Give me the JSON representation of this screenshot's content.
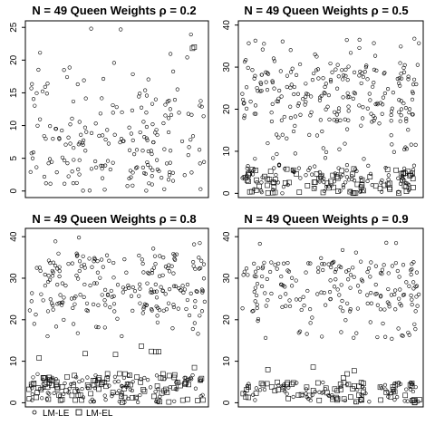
{
  "chart_data": [
    {
      "type": "scatter",
      "title": "N = 49  Queen  Weights  ρ = 0.2",
      "xlabel": "",
      "ylabel": "",
      "ylim": [
        -1,
        26
      ],
      "yticks": [
        "0",
        "5",
        "10",
        "15",
        "20",
        "25"
      ],
      "ytick_values": [
        0,
        5,
        10,
        15,
        20,
        25
      ],
      "series": [
        {
          "marker": "circle",
          "bands": [
            {
              "x_range": [
                0,
                1000
              ],
              "y_range": [
                0,
                9
              ],
              "density": "solid"
            },
            {
              "x_range": [
                0,
                1000
              ],
              "y_range": [
                9,
                15
              ],
              "density": "dense"
            },
            {
              "x_range": [
                0,
                1000
              ],
              "y_range": [
                15,
                20
              ],
              "density": "medium"
            },
            {
              "x_range": [
                0,
                1000
              ],
              "y_range": [
                20,
                25
              ],
              "density": "sparse"
            }
          ]
        },
        {
          "marker": "square",
          "points": [
            [
              930,
              21.8
            ],
            [
              940,
              22.0
            ]
          ]
        }
      ]
    },
    {
      "type": "scatter",
      "title": "N = 49  Queen  Weights  ρ = 0.5",
      "xlabel": "",
      "ylabel": "",
      "ylim": [
        -1,
        41
      ],
      "yticks": [
        "0",
        "10",
        "20",
        "30",
        "40"
      ],
      "ytick_values": [
        0,
        10,
        20,
        30,
        40
      ],
      "series": [
        {
          "marker": "circle",
          "bands": [
            {
              "x_range": [
                0,
                1000
              ],
              "y_range": [
                17,
                31
              ],
              "density": "solid"
            },
            {
              "x_range": [
                0,
                1000
              ],
              "y_range": [
                8,
                17
              ],
              "density": "medium"
            },
            {
              "x_range": [
                0,
                1000
              ],
              "y_range": [
                31,
                37
              ],
              "density": "medium"
            },
            {
              "x_range": [
                0,
                1000
              ],
              "y_range": [
                0,
                7
              ],
              "density": "solid"
            }
          ]
        },
        {
          "marker": "square",
          "bands": [
            {
              "x_range": [
                0,
                1000
              ],
              "y_range": [
                0,
                6
              ],
              "density": "solid"
            }
          ]
        }
      ]
    },
    {
      "type": "scatter",
      "title": "N = 49  Queen  Weights  ρ = 0.8",
      "xlabel": "",
      "ylabel": "",
      "ylim": [
        -1,
        42
      ],
      "yticks": [
        "0",
        "10",
        "20",
        "30",
        "40"
      ],
      "ytick_values": [
        0,
        10,
        20,
        30,
        40
      ],
      "series": [
        {
          "marker": "circle",
          "bands": [
            {
              "x_range": [
                0,
                1000
              ],
              "y_range": [
                22,
                36
              ],
              "density": "solid"
            },
            {
              "x_range": [
                0,
                1000
              ],
              "y_range": [
                16,
                22
              ],
              "density": "medium"
            },
            {
              "x_range": [
                0,
                1000
              ],
              "y_range": [
                36,
                40
              ],
              "density": "sparse"
            },
            {
              "x_range": [
                0,
                1000
              ],
              "y_range": [
                0,
                7
              ],
              "density": "solid"
            }
          ]
        },
        {
          "marker": "square",
          "bands": [
            {
              "x_range": [
                0,
                1000
              ],
              "y_range": [
                0,
                7
              ],
              "density": "solid"
            },
            {
              "x_range": [
                0,
                1000
              ],
              "y_range": [
                7,
                14
              ],
              "density": "sparse"
            }
          ]
        }
      ]
    },
    {
      "type": "scatter",
      "title": "N = 49  Queen  Weights  ρ = 0.9",
      "xlabel": "",
      "ylabel": "",
      "ylim": [
        -1,
        42
      ],
      "yticks": [
        "0",
        "10",
        "20",
        "30",
        "40"
      ],
      "ytick_values": [
        0,
        10,
        20,
        30,
        40
      ],
      "series": [
        {
          "marker": "circle",
          "bands": [
            {
              "x_range": [
                0,
                1000
              ],
              "y_range": [
                22,
                34
              ],
              "density": "solid"
            },
            {
              "x_range": [
                0,
                1000
              ],
              "y_range": [
                15,
                22
              ],
              "density": "medium"
            },
            {
              "x_range": [
                0,
                1000
              ],
              "y_range": [
                34,
                39
              ],
              "density": "sparse"
            },
            {
              "x_range": [
                0,
                1000
              ],
              "y_range": [
                0,
                5
              ],
              "density": "solid"
            }
          ]
        },
        {
          "marker": "square",
          "bands": [
            {
              "x_range": [
                0,
                1000
              ],
              "y_range": [
                0,
                5
              ],
              "density": "solid"
            },
            {
              "x_range": [
                0,
                1000
              ],
              "y_range": [
                5,
                9
              ],
              "density": "sparse"
            }
          ]
        }
      ]
    }
  ],
  "legend": {
    "placement": "bottom-left",
    "items": [
      {
        "marker": "circle",
        "label": "LM-LE"
      },
      {
        "marker": "square",
        "label": "LM-EL"
      }
    ]
  },
  "colors": {
    "marker": "#000000",
    "background": "#ffffff",
    "axis": "#000000"
  }
}
